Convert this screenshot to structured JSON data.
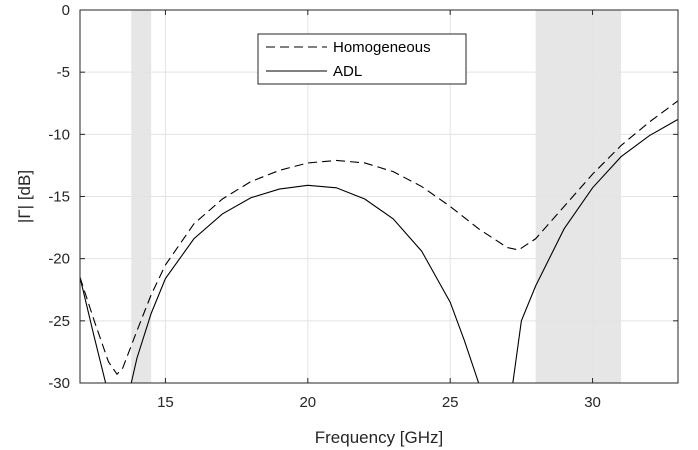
{
  "chart_data": {
    "type": "line",
    "xlabel": "Frequency [GHz]",
    "ylabel": "|Γ| [dB]",
    "xlim": [
      12,
      33
    ],
    "ylim": [
      -30,
      0
    ],
    "xticks": [
      15,
      20,
      25,
      30
    ],
    "yticks": [
      0,
      -5,
      -10,
      -15,
      -20,
      -25,
      -30
    ],
    "xtick_labels": [
      "15",
      "20",
      "25",
      "30"
    ],
    "ytick_labels": [
      "0",
      "-5",
      "-10",
      "-15",
      "-20",
      "-25",
      "-30"
    ],
    "grid": true,
    "legend_position": "top-center",
    "shaded_bands": [
      {
        "x_start": 13.8,
        "x_end": 14.5,
        "color": "#e6e6e6"
      },
      {
        "x_start": 28,
        "x_end": 31,
        "color": "#e6e6e6"
      }
    ],
    "series": [
      {
        "name": "Homogeneous",
        "style": "dashed",
        "color": "#000000",
        "x": [
          12,
          12.5,
          13,
          13.3,
          13.5,
          14,
          14.5,
          15,
          16,
          17,
          18,
          19,
          20,
          21,
          22,
          23,
          24,
          25,
          26,
          27,
          27.4,
          28,
          29,
          30,
          31,
          32,
          33
        ],
        "y": [
          -21.5,
          -25,
          -28.3,
          -29.3,
          -28.8,
          -25.8,
          -22.9,
          -20.5,
          -17.2,
          -15.2,
          -13.8,
          -12.9,
          -12.3,
          -12.1,
          -12.3,
          -13,
          -14.2,
          -15.8,
          -17.6,
          -19.1,
          -19.3,
          -18.4,
          -15.8,
          -13.2,
          -10.9,
          -9,
          -7.3
        ]
      },
      {
        "name": "ADL",
        "style": "solid",
        "color": "#000000",
        "x": [
          12,
          12.5,
          12.9,
          13.3,
          13.8,
          14,
          14.5,
          15,
          16,
          17,
          18,
          19,
          20,
          21,
          22,
          23,
          24,
          25,
          25.5,
          26,
          26.8,
          27.2,
          27.5,
          28,
          29,
          30,
          31,
          32,
          33
        ],
        "y": [
          -21.5,
          -26.3,
          -30,
          -32,
          -30,
          -28,
          -24.4,
          -21.6,
          -18.4,
          -16.4,
          -15.1,
          -14.4,
          -14.1,
          -14.3,
          -15.2,
          -16.8,
          -19.4,
          -23.5,
          -26.6,
          -30,
          -33,
          -30,
          -25,
          -22.2,
          -17.6,
          -14.3,
          -11.8,
          -10.1,
          -8.8
        ]
      }
    ]
  }
}
